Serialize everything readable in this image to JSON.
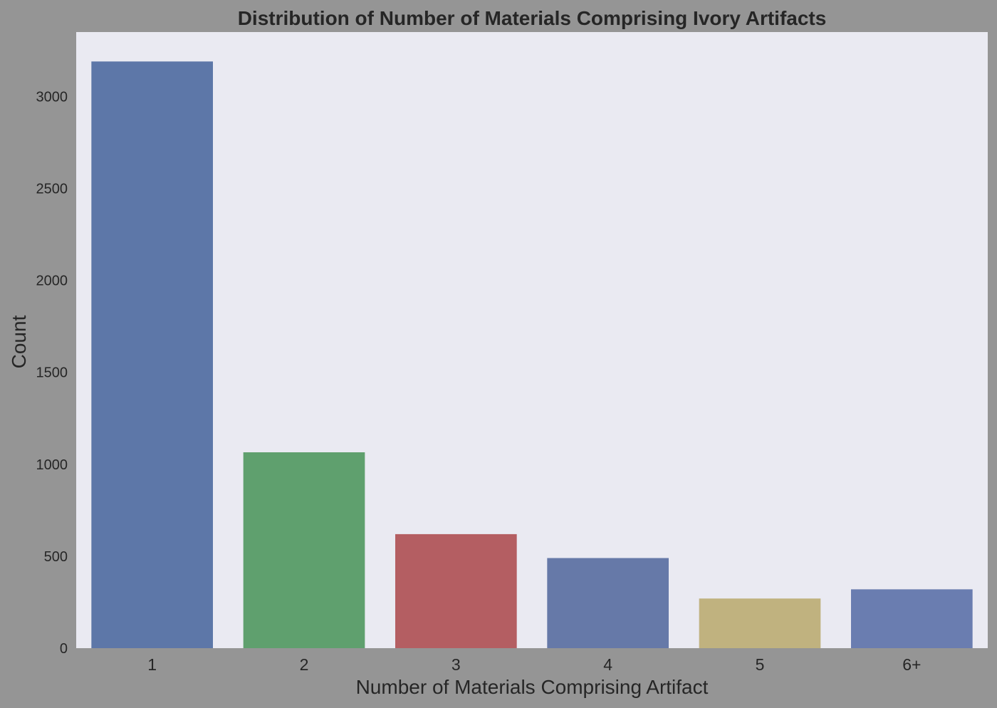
{
  "chart_data": {
    "type": "bar",
    "title": "Distribution of Number of Materials Comprising Ivory Artifacts",
    "xlabel": "Number of Materials Comprising Artifact",
    "ylabel": "Count",
    "categories": [
      "1",
      "2",
      "3",
      "4",
      "5",
      "6+"
    ],
    "values": [
      3190,
      1065,
      620,
      490,
      270,
      320
    ],
    "colors": [
      "#5d77a8",
      "#5fa06e",
      "#b45e62",
      "#6679a8",
      "#c0b27f",
      "#6a7db0"
    ],
    "ylim": [
      0,
      3350
    ],
    "yticks": [
      0,
      500,
      1000,
      1500,
      2000,
      2500,
      3000
    ],
    "grid": false,
    "legend": "none",
    "plot_background": "#eaeaf2",
    "figure_background": "#959595"
  }
}
